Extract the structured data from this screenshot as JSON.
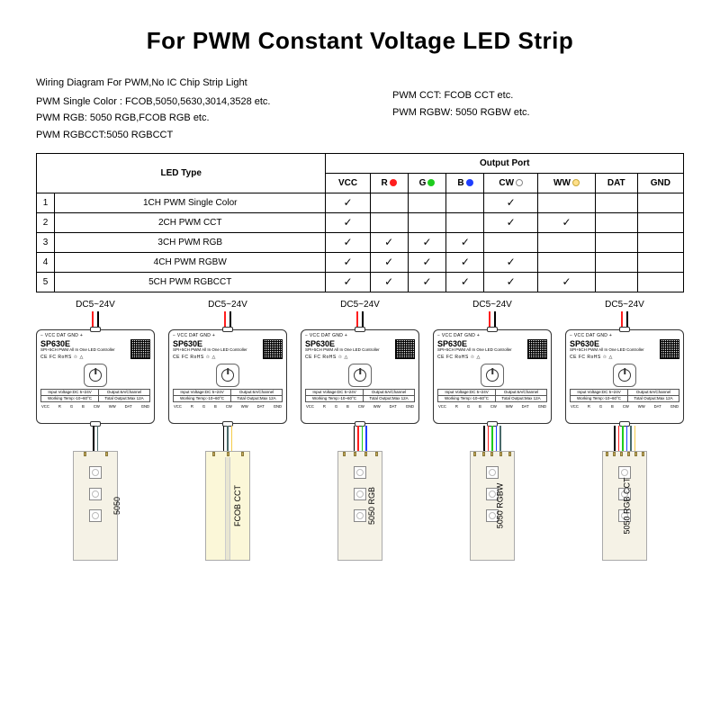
{
  "title": "For PWM Constant Voltage LED Strip",
  "subtitle_head": "Wiring Diagram For PWM,No IC Chip Strip Light",
  "left_lines": [
    "PWM Single Color :  FCOB,5050,5630,3014,3528 etc.",
    "PWM RGB:  5050 RGB,FCOB RGB etc.",
    "PWM RGBCCT:5050 RGBCCT"
  ],
  "right_lines": [
    "PWM CCT:  FCOB CCT etc.",
    "PWM RGBW:  5050 RGBW etc."
  ],
  "table": {
    "group_header": "Output Port",
    "led_type_header": "LED Type",
    "ports": [
      {
        "label": "VCC",
        "color": null
      },
      {
        "label": "R",
        "color": "#ff1e1e"
      },
      {
        "label": "G",
        "color": "#1ecc1e"
      },
      {
        "label": "B",
        "color": "#1e3eff"
      },
      {
        "label": "CW",
        "color": "#ffffff",
        "border": "#888"
      },
      {
        "label": "WW",
        "color": "#ffe08a",
        "border": "#c8a83a"
      },
      {
        "label": "DAT",
        "color": null
      },
      {
        "label": "GND",
        "color": null
      }
    ],
    "rows": [
      {
        "n": "1",
        "name": "1CH PWM Single Color",
        "checks": [
          true,
          false,
          false,
          false,
          true,
          false,
          false,
          false
        ]
      },
      {
        "n": "2",
        "name": "2CH PWM CCT",
        "checks": [
          true,
          false,
          false,
          false,
          true,
          true,
          false,
          false
        ]
      },
      {
        "n": "3",
        "name": "3CH PWM RGB",
        "checks": [
          true,
          true,
          true,
          true,
          false,
          false,
          false,
          false
        ]
      },
      {
        "n": "4",
        "name": "4CH PWM RGBW",
        "checks": [
          true,
          true,
          true,
          true,
          true,
          false,
          false,
          false
        ]
      },
      {
        "n": "5",
        "name": "5CH PWM RGBCCT",
        "checks": [
          true,
          true,
          true,
          true,
          true,
          true,
          false,
          false
        ]
      }
    ]
  },
  "voltage_label": "DC5~24V",
  "controller": {
    "top_pins": "−  VCC  DAT  GND  +",
    "model": "SP630E",
    "substr": "SPI+5CH PWM All In One LED Controller",
    "certs": "CE  FC  RoHS  ♲  △",
    "spec": [
      [
        "Input Voltage:DC 5~24V",
        "Output:6A/Channel"
      ],
      [
        "Working Temp:-10~60°C",
        "Total Output:Max 12A"
      ]
    ],
    "bot_pins": [
      "VCC",
      "R",
      "G",
      "B",
      "CW",
      "WW",
      "DAT",
      "GND"
    ]
  },
  "wire_colors": {
    "power": [
      "#ff1e1e",
      "#000000"
    ],
    "vcc": "#000000",
    "r": "#ff1e1e",
    "g": "#1ecc1e",
    "b": "#1e3eff",
    "cw": "#4a6a6a",
    "ww": "#f5cc4a"
  },
  "diagrams": [
    {
      "strip_label": "5050",
      "strip_type": "led",
      "out_wires": [
        "vcc",
        "cw"
      ]
    },
    {
      "strip_label": "FCOB CCT",
      "strip_type": "fcob",
      "out_wires": [
        "vcc",
        "cw",
        "ww"
      ]
    },
    {
      "strip_label": "5050 RGB",
      "strip_type": "led",
      "out_wires": [
        "vcc",
        "r",
        "g",
        "b"
      ]
    },
    {
      "strip_label": "5050 RGBW",
      "strip_type": "led",
      "out_wires": [
        "vcc",
        "r",
        "g",
        "b",
        "cw"
      ]
    },
    {
      "strip_label": "5050 RGB CCT",
      "strip_type": "led",
      "out_wires": [
        "vcc",
        "r",
        "g",
        "b",
        "cw",
        "ww"
      ]
    }
  ],
  "colors": {
    "text": "#000000",
    "border": "#000000",
    "strip_bg": "#f5f2e6",
    "fcob_bg": "#fbf7d8",
    "pad": "#c9a85a"
  }
}
